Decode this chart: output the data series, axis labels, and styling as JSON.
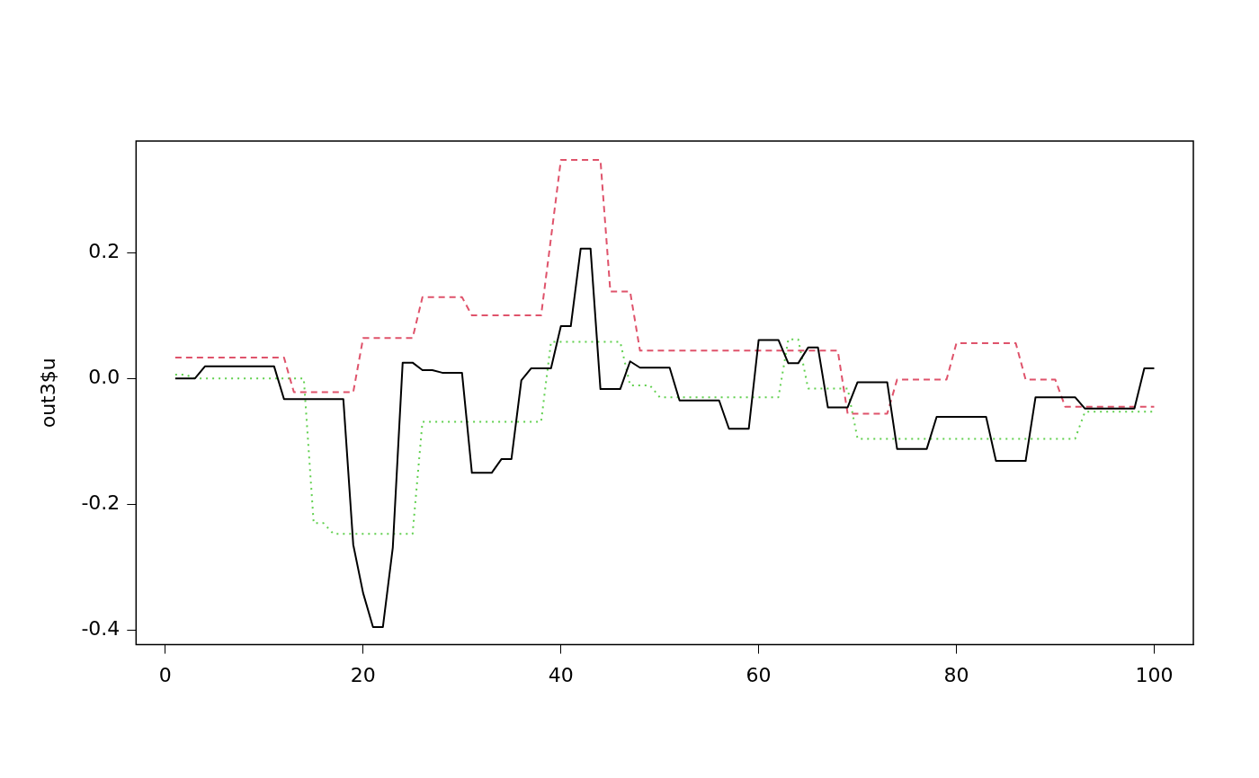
{
  "chart_data": {
    "type": "line",
    "ylabel": "out3$u",
    "x": [
      1,
      2,
      3,
      4,
      5,
      6,
      7,
      8,
      9,
      10,
      11,
      12,
      13,
      14,
      15,
      16,
      17,
      18,
      19,
      20,
      21,
      22,
      23,
      24,
      25,
      26,
      27,
      28,
      29,
      30,
      31,
      32,
      33,
      34,
      35,
      36,
      37,
      38,
      39,
      40,
      41,
      42,
      43,
      44,
      45,
      46,
      47,
      48,
      49,
      50,
      51,
      52,
      53,
      54,
      55,
      56,
      57,
      58,
      59,
      60,
      61,
      62,
      63,
      64,
      65,
      66,
      67,
      68,
      69,
      70,
      71,
      72,
      73,
      74,
      75,
      76,
      77,
      78,
      79,
      80,
      81,
      82,
      83,
      84,
      85,
      86,
      87,
      88,
      89,
      90,
      91,
      92,
      93,
      94,
      95,
      96,
      97,
      98,
      99,
      100
    ],
    "series": [
      {
        "color": "#000000",
        "line_style": "solid",
        "values": [
          0,
          0,
          0,
          0.019,
          0.019,
          0.019,
          0.019,
          0.019,
          0.019,
          0.019,
          0.019,
          -0.033,
          -0.033,
          -0.033,
          -0.033,
          -0.033,
          -0.033,
          -0.033,
          -0.264,
          -0.341,
          -0.395,
          -0.395,
          -0.269,
          0.025,
          0.025,
          0.013,
          0.013,
          0.009,
          0.009,
          0.009,
          -0.15,
          -0.15,
          -0.15,
          -0.128,
          -0.128,
          -0.003,
          0.016,
          0.016,
          0.016,
          0.083,
          0.083,
          0.206,
          0.206,
          -0.017,
          -0.017,
          -0.017,
          0.027,
          0.017,
          0.017,
          0.017,
          0.017,
          -0.035,
          -0.035,
          -0.035,
          -0.035,
          -0.035,
          -0.08,
          -0.08,
          -0.08,
          0.061,
          0.061,
          0.061,
          0.024,
          0.024,
          0.049,
          0.049,
          -0.046,
          -0.046,
          -0.046,
          -0.006,
          -0.006,
          -0.006,
          -0.006,
          -0.112,
          -0.112,
          -0.112,
          -0.112,
          -0.061,
          -0.061,
          -0.061,
          -0.061,
          -0.061,
          -0.061,
          -0.131,
          -0.131,
          -0.131,
          -0.131,
          -0.03,
          -0.03,
          -0.03,
          -0.03,
          -0.03,
          -0.048,
          -0.048,
          -0.048,
          -0.048,
          -0.048,
          -0.048,
          0.016,
          0.016
        ]
      },
      {
        "color": "#df536b",
        "line_style": "dashed",
        "values": [
          0.033,
          0.033,
          0.033,
          0.033,
          0.033,
          0.033,
          0.033,
          0.033,
          0.033,
          0.033,
          0.033,
          0.033,
          -0.022,
          -0.022,
          -0.022,
          -0.022,
          -0.022,
          -0.022,
          -0.022,
          0.064,
          0.064,
          0.064,
          0.064,
          0.064,
          0.064,
          0.129,
          0.129,
          0.129,
          0.129,
          0.129,
          0.1,
          0.1,
          0.1,
          0.1,
          0.1,
          0.1,
          0.1,
          0.1,
          0.223,
          0.347,
          0.347,
          0.347,
          0.347,
          0.347,
          0.138,
          0.138,
          0.138,
          0.044,
          0.044,
          0.044,
          0.044,
          0.044,
          0.044,
          0.044,
          0.044,
          0.044,
          0.044,
          0.044,
          0.044,
          0.044,
          0.044,
          0.044,
          0.044,
          0.044,
          0.044,
          0.044,
          0.044,
          0.044,
          -0.056,
          -0.056,
          -0.056,
          -0.056,
          -0.056,
          -0.002,
          -0.002,
          -0.002,
          -0.002,
          -0.002,
          -0.002,
          0.056,
          0.056,
          0.056,
          0.056,
          0.056,
          0.056,
          0.056,
          -0.002,
          -0.002,
          -0.002,
          -0.002,
          -0.045,
          -0.045,
          -0.045,
          -0.045,
          -0.045,
          -0.045,
          -0.045,
          -0.045,
          -0.045,
          -0.045
        ]
      },
      {
        "color": "#61d04f",
        "line_style": "dotted",
        "values": [
          0.006,
          0.006,
          0,
          0,
          0,
          0,
          0,
          0,
          0,
          0,
          0,
          0,
          0,
          0,
          -0.23,
          -0.23,
          -0.247,
          -0.247,
          -0.247,
          -0.247,
          -0.247,
          -0.247,
          -0.247,
          -0.247,
          -0.247,
          -0.069,
          -0.069,
          -0.069,
          -0.069,
          -0.069,
          -0.069,
          -0.069,
          -0.069,
          -0.069,
          -0.069,
          -0.069,
          -0.069,
          -0.069,
          0.058,
          0.058,
          0.058,
          0.058,
          0.058,
          0.058,
          0.058,
          0.058,
          -0.011,
          -0.011,
          -0.011,
          -0.03,
          -0.03,
          -0.03,
          -0.03,
          -0.03,
          -0.03,
          -0.03,
          -0.03,
          -0.03,
          -0.03,
          -0.03,
          -0.03,
          -0.03,
          0.062,
          0.062,
          -0.016,
          -0.016,
          -0.016,
          -0.016,
          -0.016,
          -0.096,
          -0.096,
          -0.096,
          -0.096,
          -0.096,
          -0.096,
          -0.096,
          -0.096,
          -0.096,
          -0.096,
          -0.096,
          -0.096,
          -0.096,
          -0.096,
          -0.096,
          -0.096,
          -0.096,
          -0.096,
          -0.096,
          -0.096,
          -0.096,
          -0.096,
          -0.096,
          -0.053,
          -0.053,
          -0.053,
          -0.053,
          -0.053,
          -0.053,
          -0.053,
          -0.053
        ]
      }
    ],
    "marker": "none",
    "grid": false,
    "legend": false,
    "xlim": [
      -2.96,
      103.96
    ],
    "xticks": [
      0,
      20,
      40,
      60,
      80,
      100
    ],
    "ylim": [
      -0.423,
      0.377
    ],
    "yticks": [
      {
        "value": -0.4,
        "label": "-0.4"
      },
      {
        "value": -0.2,
        "label": "-0.2"
      },
      {
        "value": 0,
        "label": "0.0"
      },
      {
        "value": 0.2,
        "label": "0.2"
      }
    ]
  }
}
